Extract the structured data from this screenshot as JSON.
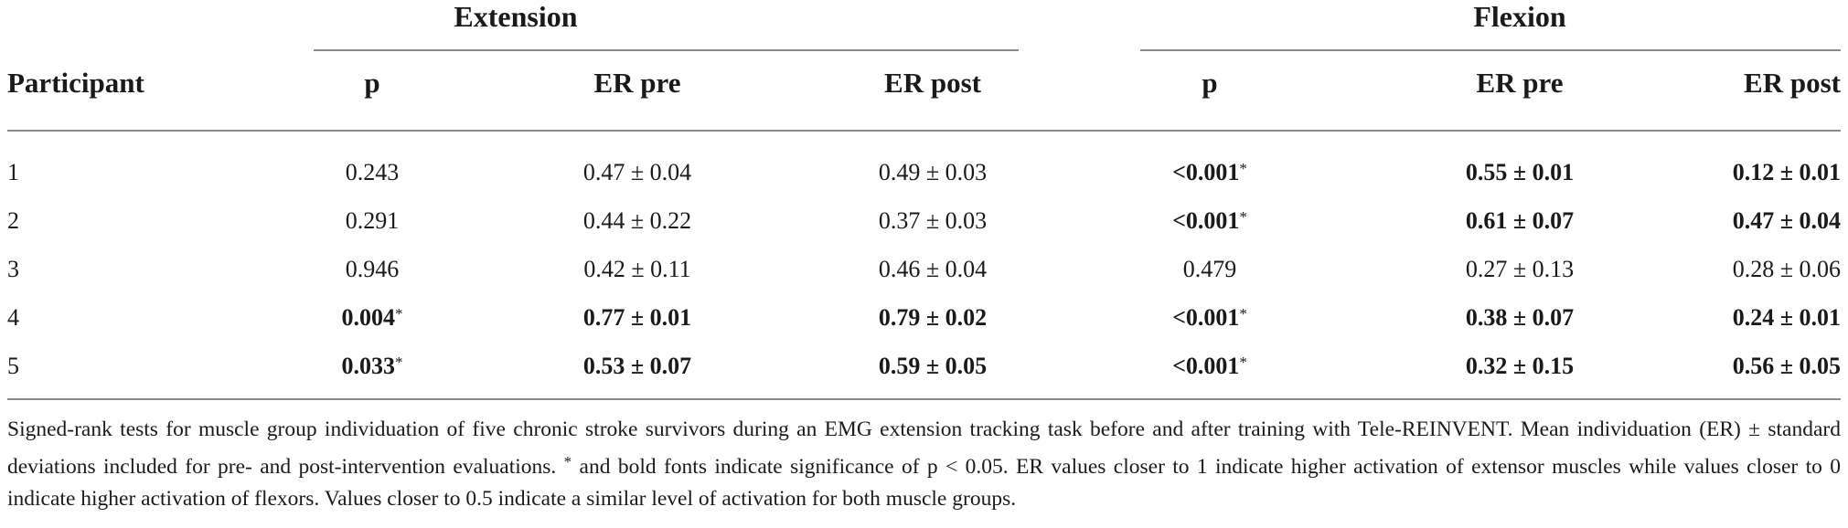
{
  "table": {
    "groups": [
      {
        "label": "Extension"
      },
      {
        "label": "Flexion"
      }
    ],
    "columns": [
      "Participant",
      "p",
      "ER pre",
      "ER post",
      "p",
      "ER pre",
      "ER post"
    ],
    "rows": [
      {
        "participant": "1",
        "ext_p": "0.243",
        "ext_pre": "0.47 ± 0.04",
        "ext_post": "0.49 ± 0.03",
        "flex_p": "<0.001",
        "flex_pre": "0.55 ± 0.01",
        "flex_post": "0.12 ± 0.01"
      },
      {
        "participant": "2",
        "ext_p": "0.291",
        "ext_pre": "0.44 ± 0.22",
        "ext_post": "0.37 ± 0.03",
        "flex_p": "<0.001",
        "flex_pre": "0.61 ± 0.07",
        "flex_post": "0.47 ± 0.04"
      },
      {
        "participant": "3",
        "ext_p": "0.946",
        "ext_pre": "0.42 ± 0.11",
        "ext_post": "0.46 ± 0.04",
        "flex_p": "0.479",
        "flex_pre": "0.27 ± 0.13",
        "flex_post": "0.28 ± 0.06"
      },
      {
        "participant": "4",
        "ext_p": "0.004",
        "ext_pre": "0.77 ± 0.01",
        "ext_post": "0.79 ± 0.02",
        "flex_p": "<0.001",
        "flex_pre": "0.38 ± 0.07",
        "flex_post": "0.24 ± 0.01"
      },
      {
        "participant": "5",
        "ext_p": "0.033",
        "ext_pre": "0.53 ± 0.07",
        "ext_post": "0.59 ± 0.05",
        "flex_p": "<0.001",
        "flex_pre": "0.32 ± 0.15",
        "flex_post": "0.56 ± 0.05"
      }
    ],
    "significance_marker": "*"
  },
  "caption": {
    "text_1": "Signed-rank tests for muscle group individuation of five chronic stroke survivors during an EMG extension tracking task before and after training with Tele-REINVENT. Mean individuation (ER) ± standard deviations included for pre- and post-intervention evaluations. ",
    "marker": "*",
    "text_2": " and bold fonts indicate significance of p < 0.05. ER values closer to 1 indicate higher activation of extensor muscles while values closer to 0 indicate higher activation of flexors. Values closer to 0.5 indicate a similar level of activation for both muscle groups."
  }
}
